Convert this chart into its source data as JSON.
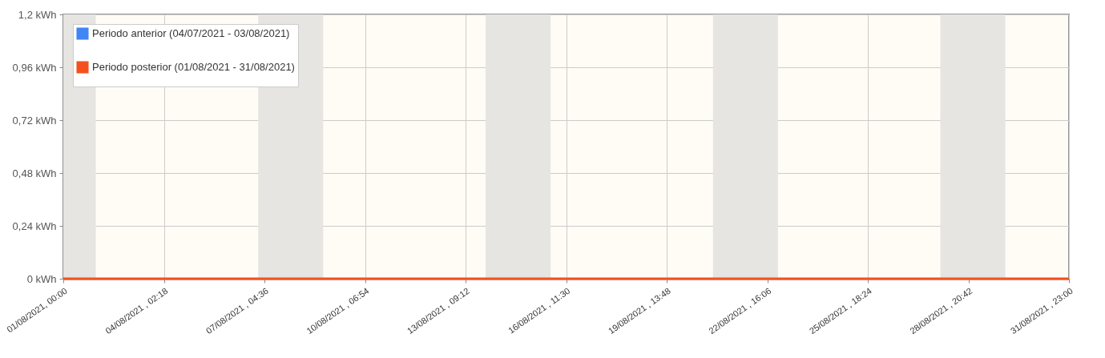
{
  "chart_data": {
    "type": "line",
    "x": [
      "2021-08-01T00:00",
      "2021-08-31T23:00"
    ],
    "series": [
      {
        "name": "Periodo anterior (04/07/2021 - 03/08/2021)",
        "color": "#4285f4",
        "values": [
          null,
          null
        ]
      },
      {
        "name": "Periodo posterior (01/08/2021 - 31/08/2021)",
        "color": "#f4511e",
        "values": [
          0,
          0
        ]
      }
    ],
    "xlim": [
      "2021-08-01T00:00",
      "2021-08-31T23:00"
    ],
    "xticks": [
      {
        "value": "2021-08-01T00:00",
        "label": "01/08/2021, 00:00"
      },
      {
        "value": "2021-08-04T02:18",
        "label": "04/08/2021 , 02:18"
      },
      {
        "value": "2021-08-07T04:36",
        "label": "07/08/2021 , 04:36"
      },
      {
        "value": "2021-08-10T06:54",
        "label": "10/08/2021 , 06:54"
      },
      {
        "value": "2021-08-13T09:12",
        "label": "13/08/2021 , 09:12"
      },
      {
        "value": "2021-08-16T11:30",
        "label": "16/08/2021 , 11:30"
      },
      {
        "value": "2021-08-19T13:48",
        "label": "19/08/2021 , 13:48"
      },
      {
        "value": "2021-08-22T16:06",
        "label": "22/08/2021 , 16:06"
      },
      {
        "value": "2021-08-25T18:24",
        "label": "25/08/2021 , 18:24"
      },
      {
        "value": "2021-08-28T20:42",
        "label": "28/08/2021 , 20:42"
      },
      {
        "value": "2021-08-31T23:00",
        "label": "31/08/2021 , 23:00"
      }
    ],
    "ylim": [
      0,
      1.2
    ],
    "yticks": [
      {
        "value": 0,
        "label": "0 kWh"
      },
      {
        "value": 0.24,
        "label": "0,24 kWh"
      },
      {
        "value": 0.48,
        "label": "0,48 kWh"
      },
      {
        "value": 0.72,
        "label": "0,72 kWh"
      },
      {
        "value": 0.96,
        "label": "0,96 kWh"
      },
      {
        "value": 1.2,
        "label": "1,2 kWh"
      }
    ],
    "bands": [
      {
        "axis": "x",
        "from": "2021-08-01T00:00",
        "to": "2021-08-02T00:00",
        "color": "#e6e5e1"
      },
      {
        "axis": "x",
        "from": "2021-08-07T00:00",
        "to": "2021-08-09T00:00",
        "color": "#e6e5e1"
      },
      {
        "axis": "x",
        "from": "2021-08-14T00:00",
        "to": "2021-08-16T00:00",
        "color": "#e6e5e1"
      },
      {
        "axis": "x",
        "from": "2021-08-21T00:00",
        "to": "2021-08-23T00:00",
        "color": "#e6e5e1"
      },
      {
        "axis": "x",
        "from": "2021-08-28T00:00",
        "to": "2021-08-30T00:00",
        "color": "#e6e5e1"
      }
    ],
    "grid": true,
    "legend": "top left",
    "marker": "none",
    "line_style": "solid"
  }
}
